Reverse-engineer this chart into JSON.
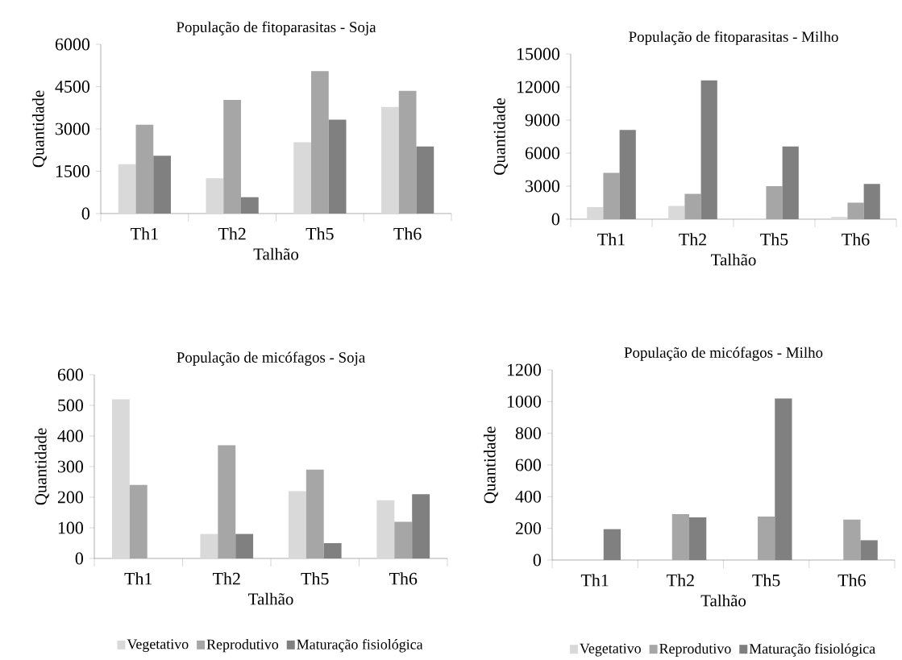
{
  "chart_data": [
    {
      "type": "bar",
      "title": "População de fitoparasitas - Soja",
      "xlabel": "Talhão",
      "ylabel": "Quantidade",
      "categories": [
        "Th1",
        "Th2",
        "Th5",
        "Th6"
      ],
      "ylim": [
        0,
        6000
      ],
      "yticks": [
        0,
        1500,
        3000,
        4500,
        6000
      ],
      "series": [
        {
          "color": "#d9d9d9",
          "values": [
            1750,
            1250,
            2530,
            3780
          ]
        },
        {
          "color": "#a6a6a6",
          "values": [
            3150,
            4030,
            5050,
            4350
          ]
        },
        {
          "color": "#808080",
          "values": [
            2050,
            580,
            3330,
            2380
          ]
        }
      ]
    },
    {
      "type": "bar",
      "title": "População de fitoparasitas - Milho",
      "xlabel": "Talhão",
      "ylabel": "Quantidade",
      "categories": [
        "Th1",
        "Th2",
        "Th5",
        "Th6"
      ],
      "ylim": [
        0,
        15000
      ],
      "yticks": [
        0,
        3000,
        6000,
        9000,
        12000,
        15000
      ],
      "series": [
        {
          "color": "#d9d9d9",
          "values": [
            1100,
            1200,
            50,
            200
          ]
        },
        {
          "color": "#a6a6a6",
          "values": [
            4200,
            2300,
            3000,
            1500
          ]
        },
        {
          "color": "#808080",
          "values": [
            8100,
            12600,
            6600,
            3200
          ]
        }
      ]
    },
    {
      "type": "bar",
      "title": "População de micófagos - Soja",
      "xlabel": "Talhão",
      "ylabel": "Quantidade",
      "categories": [
        "Th1",
        "Th2",
        "Th5",
        "Th6"
      ],
      "ylim": [
        0,
        600
      ],
      "yticks": [
        0,
        100,
        200,
        300,
        400,
        500,
        600
      ],
      "legend": "bottom",
      "series": [
        {
          "name": "Vegetativo",
          "color": "#d9d9d9",
          "values": [
            520,
            80,
            220,
            190
          ]
        },
        {
          "name": "Reprodutivo",
          "color": "#a6a6a6",
          "values": [
            240,
            370,
            290,
            120
          ]
        },
        {
          "name": "Maturação fisiológica",
          "color": "#808080",
          "values": [
            0,
            80,
            50,
            210
          ]
        }
      ]
    },
    {
      "type": "bar",
      "title": "População de micófagos - Milho",
      "xlabel": "Talhão",
      "ylabel": "Quantidade",
      "categories": [
        "Th1",
        "Th2",
        "Th5",
        "Th6"
      ],
      "ylim": [
        0,
        1200
      ],
      "yticks": [
        0,
        200,
        400,
        600,
        800,
        1000,
        1200
      ],
      "legend": "bottom",
      "series": [
        {
          "name": "Vegetativo",
          "color": "#d9d9d9",
          "values": [
            0,
            0,
            0,
            0
          ]
        },
        {
          "name": "Reprodutivo",
          "color": "#a6a6a6",
          "values": [
            0,
            290,
            275,
            255
          ]
        },
        {
          "name": "Maturação fisiológica",
          "color": "#808080",
          "values": [
            195,
            270,
            1020,
            125
          ]
        }
      ]
    }
  ]
}
